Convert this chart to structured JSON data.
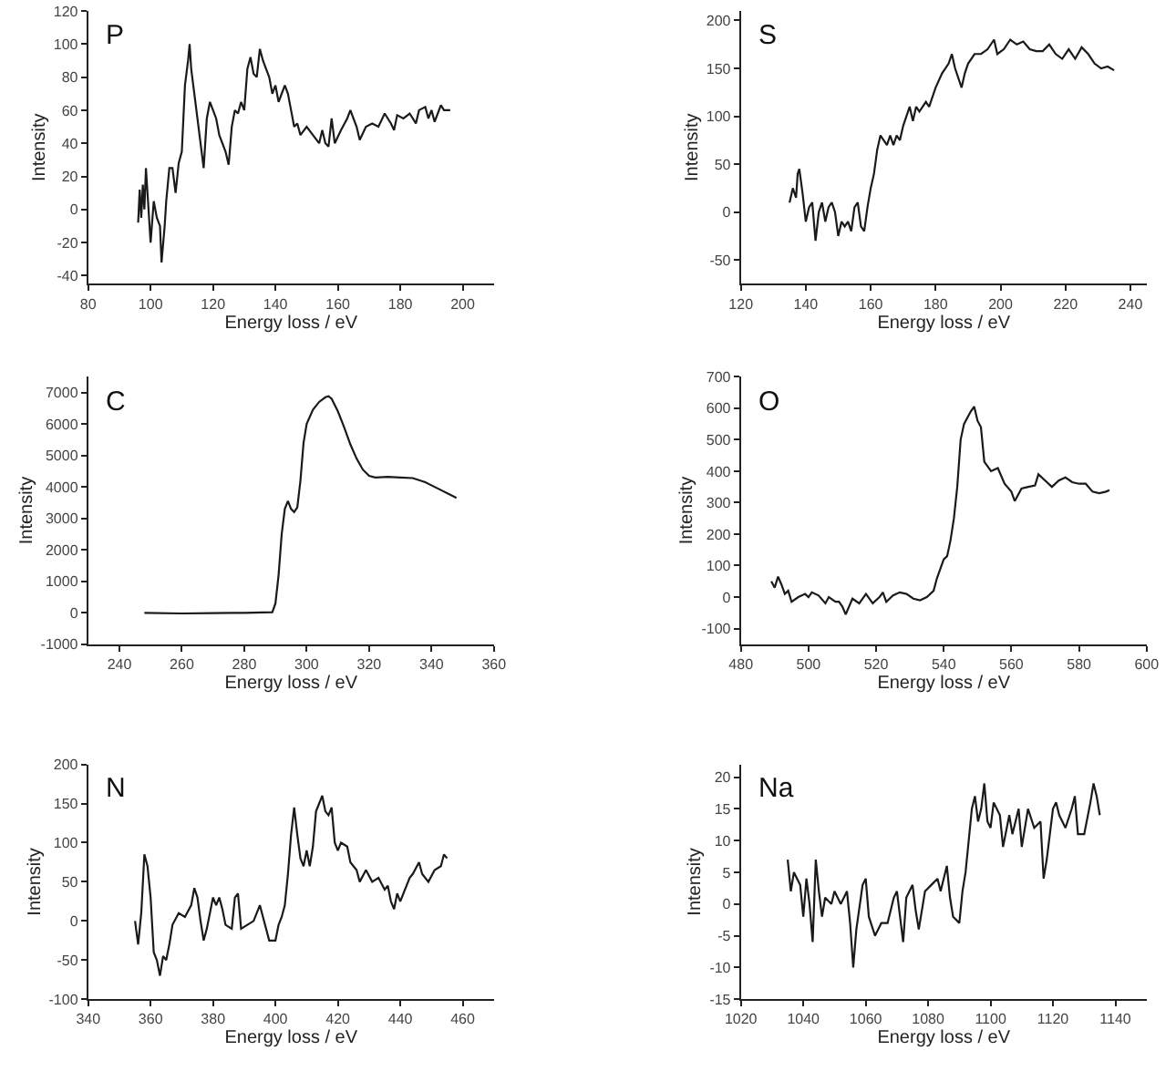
{
  "chart_data": [
    {
      "type": "line",
      "title": "P",
      "xlabel": "Energy loss / eV",
      "ylabel": "Intensity",
      "xlim": [
        80,
        210
      ],
      "xticks": [
        80,
        100,
        120,
        140,
        160,
        180,
        200
      ],
      "ylim": [
        -45,
        120
      ],
      "yticks": [
        -40,
        -20,
        0,
        20,
        40,
        60,
        80,
        100,
        120
      ],
      "series": [
        {
          "color": "#1a1a1a",
          "x": [
            96,
            96.5,
            97,
            97.5,
            98,
            98.5,
            99,
            100,
            101,
            102,
            103,
            103.5,
            104.5,
            105,
            106,
            107,
            108,
            109,
            110,
            111,
            112,
            112.5,
            113,
            114,
            115,
            117,
            118,
            119,
            120,
            121,
            122,
            124,
            125,
            126,
            127,
            128,
            129,
            130,
            131,
            132,
            133,
            134,
            135,
            136,
            137,
            138,
            139,
            140,
            141,
            142,
            143,
            144,
            145,
            146,
            147,
            148,
            150,
            152,
            154,
            155,
            156,
            157,
            158,
            159,
            161,
            163,
            164,
            166,
            167,
            169,
            171,
            173,
            175,
            177,
            178,
            179,
            181,
            183,
            185,
            186,
            188,
            189,
            190,
            191,
            193,
            194,
            196
          ],
          "values": [
            -8,
            12,
            -5,
            15,
            0,
            25,
            10,
            -20,
            5,
            -5,
            -10,
            -32,
            -10,
            5,
            25,
            25,
            10,
            28,
            35,
            75,
            90,
            100,
            85,
            70,
            55,
            25,
            55,
            65,
            60,
            55,
            45,
            35,
            27,
            50,
            60,
            58,
            65,
            60,
            85,
            92,
            82,
            80,
            97,
            90,
            85,
            80,
            70,
            75,
            65,
            70,
            75,
            70,
            60,
            50,
            52,
            45,
            50,
            45,
            40,
            48,
            40,
            38,
            55,
            40,
            48,
            55,
            60,
            50,
            42,
            50,
            52,
            50,
            58,
            52,
            48,
            57,
            55,
            58,
            52,
            60,
            62,
            55,
            60,
            53,
            63,
            60,
            60
          ]
        }
      ]
    },
    {
      "type": "line",
      "title": "S",
      "xlabel": "Energy loss / eV",
      "ylabel": "Intensity",
      "xlim": [
        120,
        245
      ],
      "xticks": [
        120,
        140,
        160,
        180,
        200,
        220,
        240
      ],
      "ylim": [
        -75,
        210
      ],
      "yticks": [
        -50,
        0,
        50,
        100,
        150,
        200
      ],
      "series": [
        {
          "color": "#1a1a1a",
          "x": [
            135,
            136,
            137,
            137.5,
            138,
            139,
            140,
            141,
            142,
            143,
            144,
            145,
            146,
            147,
            148,
            149,
            150,
            151,
            152,
            153,
            154,
            155,
            156,
            157,
            158,
            159,
            160,
            161,
            162,
            163,
            164,
            165,
            166,
            167,
            168,
            169,
            170,
            172,
            173,
            174,
            175,
            177,
            178,
            180,
            182,
            184,
            185,
            186,
            188,
            189,
            190,
            192,
            194,
            196,
            198,
            199,
            201,
            203,
            205,
            207,
            209,
            211,
            213,
            215,
            217,
            219,
            221,
            223,
            225,
            227,
            229,
            231,
            233,
            235
          ],
          "values": [
            10,
            25,
            15,
            40,
            45,
            20,
            -10,
            5,
            10,
            -30,
            0,
            10,
            -10,
            5,
            10,
            0,
            -25,
            -10,
            -15,
            -10,
            -20,
            5,
            10,
            -15,
            -20,
            5,
            25,
            40,
            65,
            80,
            75,
            70,
            80,
            70,
            80,
            75,
            90,
            110,
            95,
            110,
            105,
            115,
            110,
            130,
            145,
            155,
            165,
            150,
            130,
            145,
            155,
            165,
            165,
            170,
            180,
            165,
            170,
            180,
            175,
            178,
            170,
            168,
            168,
            175,
            165,
            160,
            170,
            160,
            172,
            165,
            155,
            150,
            152,
            148
          ]
        }
      ]
    },
    {
      "type": "line",
      "title": "C",
      "xlabel": "Energy loss / eV",
      "ylabel": "Intensity",
      "xlim": [
        230,
        360
      ],
      "xticks": [
        240,
        260,
        280,
        300,
        320,
        340,
        360
      ],
      "ylim": [
        -1000,
        7500
      ],
      "yticks": [
        -1000,
        0,
        1000,
        2000,
        3000,
        4000,
        5000,
        6000,
        7000
      ],
      "series": [
        {
          "color": "#1a1a1a",
          "x": [
            248,
            260,
            270,
            280,
            289,
            290,
            291,
            292,
            293,
            294,
            295,
            296,
            297,
            298,
            299,
            300,
            302,
            304,
            306,
            307,
            308,
            310,
            312,
            314,
            316,
            318,
            320,
            322,
            326,
            330,
            334,
            338,
            342,
            346,
            348
          ],
          "values": [
            0,
            -20,
            -10,
            0,
            20,
            300,
            1200,
            2500,
            3300,
            3550,
            3300,
            3200,
            3350,
            4200,
            5400,
            6000,
            6450,
            6700,
            6850,
            6880,
            6800,
            6400,
            5900,
            5350,
            4900,
            4550,
            4350,
            4300,
            4320,
            4300,
            4280,
            4150,
            3950,
            3750,
            3650
          ]
        }
      ]
    },
    {
      "type": "line",
      "title": "O",
      "xlabel": "Energy loss / eV",
      "ylabel": "Intensity",
      "xlim": [
        480,
        600
      ],
      "xticks": [
        480,
        500,
        520,
        540,
        560,
        580,
        600
      ],
      "ylim": [
        -150,
        700
      ],
      "yticks": [
        -100,
        0,
        100,
        200,
        300,
        400,
        500,
        600,
        700
      ],
      "series": [
        {
          "color": "#1a1a1a",
          "x": [
            489,
            490,
            491,
            492,
            493,
            494,
            495,
            497,
            499,
            500,
            501,
            503,
            505,
            506,
            508,
            509,
            510,
            511,
            512,
            513,
            515,
            517,
            519,
            521,
            522,
            523,
            525,
            527,
            529,
            531,
            533,
            535,
            537,
            538,
            540,
            541,
            542,
            543,
            544,
            545,
            546,
            548,
            549,
            550,
            551,
            552,
            554,
            556,
            558,
            560,
            561,
            563,
            565,
            567,
            568,
            570,
            572,
            574,
            576,
            578,
            580,
            582,
            584,
            586,
            588,
            589
          ],
          "values": [
            50,
            30,
            65,
            40,
            10,
            20,
            -15,
            0,
            10,
            0,
            15,
            5,
            -20,
            0,
            -15,
            -15,
            -30,
            -55,
            -30,
            -5,
            -20,
            10,
            -20,
            0,
            15,
            -15,
            5,
            15,
            10,
            -5,
            -10,
            0,
            20,
            60,
            120,
            130,
            180,
            250,
            350,
            500,
            550,
            590,
            605,
            560,
            540,
            430,
            400,
            410,
            360,
            335,
            305,
            345,
            350,
            355,
            390,
            370,
            350,
            370,
            380,
            365,
            360,
            360,
            335,
            330,
            335,
            340
          ]
        }
      ]
    },
    {
      "type": "line",
      "title": "N",
      "xlabel": "Energy loss / eV",
      "ylabel": "Intensity",
      "xlim": [
        340,
        470
      ],
      "xticks": [
        340,
        360,
        380,
        400,
        420,
        440,
        460
      ],
      "ylim": [
        -100,
        200
      ],
      "yticks": [
        -100,
        -50,
        0,
        50,
        100,
        150,
        200
      ],
      "series": [
        {
          "color": "#1a1a1a",
          "x": [
            355,
            356,
            357,
            358,
            359,
            360,
            361,
            362,
            363,
            364,
            365,
            366,
            367,
            369,
            371,
            373,
            374,
            375,
            376,
            377,
            378,
            380,
            381,
            382,
            383,
            384,
            386,
            387,
            388,
            389,
            391,
            393,
            395,
            396,
            398,
            400,
            401,
            402,
            403,
            404,
            405,
            406,
            407,
            408,
            409,
            410,
            411,
            412,
            413,
            414,
            415,
            416,
            417,
            418,
            419,
            420,
            421,
            423,
            424,
            426,
            427,
            429,
            431,
            433,
            435,
            436,
            437,
            438,
            439,
            440,
            441,
            442,
            443,
            444,
            446,
            447,
            449,
            451,
            453,
            454,
            455
          ],
          "values": [
            0,
            -30,
            10,
            85,
            70,
            30,
            -40,
            -50,
            -70,
            -45,
            -50,
            -30,
            -5,
            10,
            5,
            20,
            42,
            30,
            0,
            -25,
            -10,
            30,
            20,
            30,
            15,
            -5,
            -10,
            30,
            35,
            -10,
            -5,
            0,
            20,
            5,
            -25,
            -25,
            -5,
            5,
            20,
            60,
            110,
            145,
            110,
            80,
            70,
            90,
            70,
            95,
            140,
            150,
            160,
            140,
            135,
            145,
            100,
            90,
            100,
            95,
            75,
            65,
            50,
            65,
            50,
            55,
            40,
            45,
            25,
            15,
            35,
            25,
            35,
            45,
            55,
            60,
            75,
            60,
            50,
            65,
            70,
            85,
            80
          ]
        }
      ]
    },
    {
      "type": "line",
      "title": "Na",
      "xlabel": "Energy loss / eV",
      "ylabel": "Intensity",
      "xlim": [
        1020,
        1150
      ],
      "xticks": [
        1020,
        1040,
        1060,
        1080,
        1100,
        1120,
        1140
      ],
      "ylim": [
        -15,
        22
      ],
      "yticks": [
        -15,
        -10,
        -5,
        0,
        5,
        10,
        15,
        20
      ],
      "series": [
        {
          "color": "#1a1a1a",
          "x": [
            1035,
            1036,
            1037,
            1038,
            1039,
            1040,
            1041,
            1042,
            1043,
            1044,
            1045,
            1046,
            1047,
            1049,
            1050,
            1052,
            1054,
            1055,
            1056,
            1057,
            1059,
            1060,
            1061,
            1063,
            1065,
            1067,
            1069,
            1070,
            1071,
            1072,
            1073,
            1075,
            1076,
            1077,
            1079,
            1081,
            1083,
            1084,
            1086,
            1087,
            1088,
            1090,
            1091,
            1092,
            1093,
            1094,
            1095,
            1096,
            1097,
            1098,
            1099,
            1100,
            1101,
            1103,
            1104,
            1106,
            1107,
            1109,
            1110,
            1112,
            1114,
            1116,
            1117,
            1118,
            1120,
            1121,
            1122,
            1124,
            1126,
            1127,
            1128,
            1130,
            1132,
            1133,
            1134,
            1135
          ],
          "values": [
            7,
            2,
            5,
            4,
            3,
            -2,
            4,
            0,
            -6,
            7,
            2,
            -2,
            1,
            0,
            2,
            0,
            2,
            -3,
            -10,
            -4,
            3,
            4,
            -2,
            -5,
            -3,
            -3,
            1,
            2,
            -2,
            -6,
            1,
            3,
            -1,
            -4,
            2,
            3,
            4,
            2,
            6,
            1,
            -2,
            -3,
            2,
            5,
            10,
            15,
            17,
            13,
            15,
            19,
            13,
            12,
            16,
            14,
            9,
            14,
            11,
            15,
            9,
            15,
            12,
            13,
            4,
            7,
            15,
            16,
            14,
            12,
            15,
            17,
            11,
            11,
            16,
            19,
            17,
            14
          ]
        }
      ]
    }
  ]
}
